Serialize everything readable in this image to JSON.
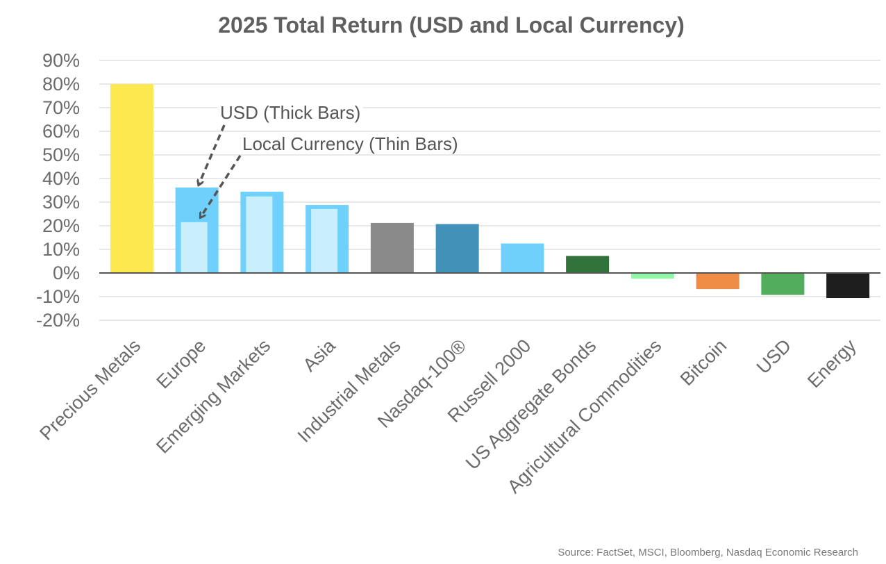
{
  "chart_data": {
    "type": "bar",
    "title": "2025 Total Return (USD and Local Currency)",
    "xlabel": "",
    "ylabel": "",
    "ylim": [
      -20,
      90
    ],
    "yticks": [
      "90%",
      "80%",
      "70%",
      "60%",
      "50%",
      "40%",
      "30%",
      "20%",
      "10%",
      "0%",
      "-10%",
      "-20%"
    ],
    "grid": true,
    "legend": null,
    "categories": [
      "Precious Metals",
      "Europe",
      "Emerging Markets",
      "Asia",
      "Industrial Metals",
      "Nasdaq-100®",
      "Russell 2000",
      "US Aggregate Bonds",
      "Agricultural Commodities",
      "Bitcoin",
      "USD",
      "Energy"
    ],
    "series": [
      {
        "name": "USD (Thick Bars)",
        "values": [
          80.0,
          36.2,
          34.4,
          28.8,
          21.2,
          20.7,
          12.5,
          7.2,
          -2.4,
          -6.8,
          -9.3,
          -10.6
        ]
      },
      {
        "name": "Local Currency (Thin Bars)",
        "values": [
          null,
          21.5,
          32.4,
          27.1,
          null,
          null,
          null,
          null,
          null,
          null,
          null,
          null
        ]
      }
    ],
    "colors": {
      "Precious Metals": "#fce94f",
      "Europe": "#6fd1fb",
      "Emerging Markets": "#6fd1fb",
      "Asia": "#6fd1fb",
      "Industrial Metals": "#8a8a8a",
      "Nasdaq-100®": "#4191b8",
      "Russell 2000": "#6fd1fb",
      "US Aggregate Bonds": "#31733b",
      "Agricultural Commodities": "#8ff7a7",
      "Bitcoin": "#ef8c45",
      "USD": "#52ae5d",
      "Energy": "#1e1e1e",
      "local_currency_bar": "#c9effd",
      "gridline": "#e0e0e0",
      "zero_line": "#555555"
    },
    "annotations": [
      {
        "text": "USD (Thick Bars)",
        "points_to": "Europe USD bar"
      },
      {
        "text": "Local Currency (Thin Bars)",
        "points_to": "Europe local currency bar"
      }
    ]
  },
  "source": "Source: FactSet, MSCI, Bloomberg, Nasdaq Economic Research"
}
